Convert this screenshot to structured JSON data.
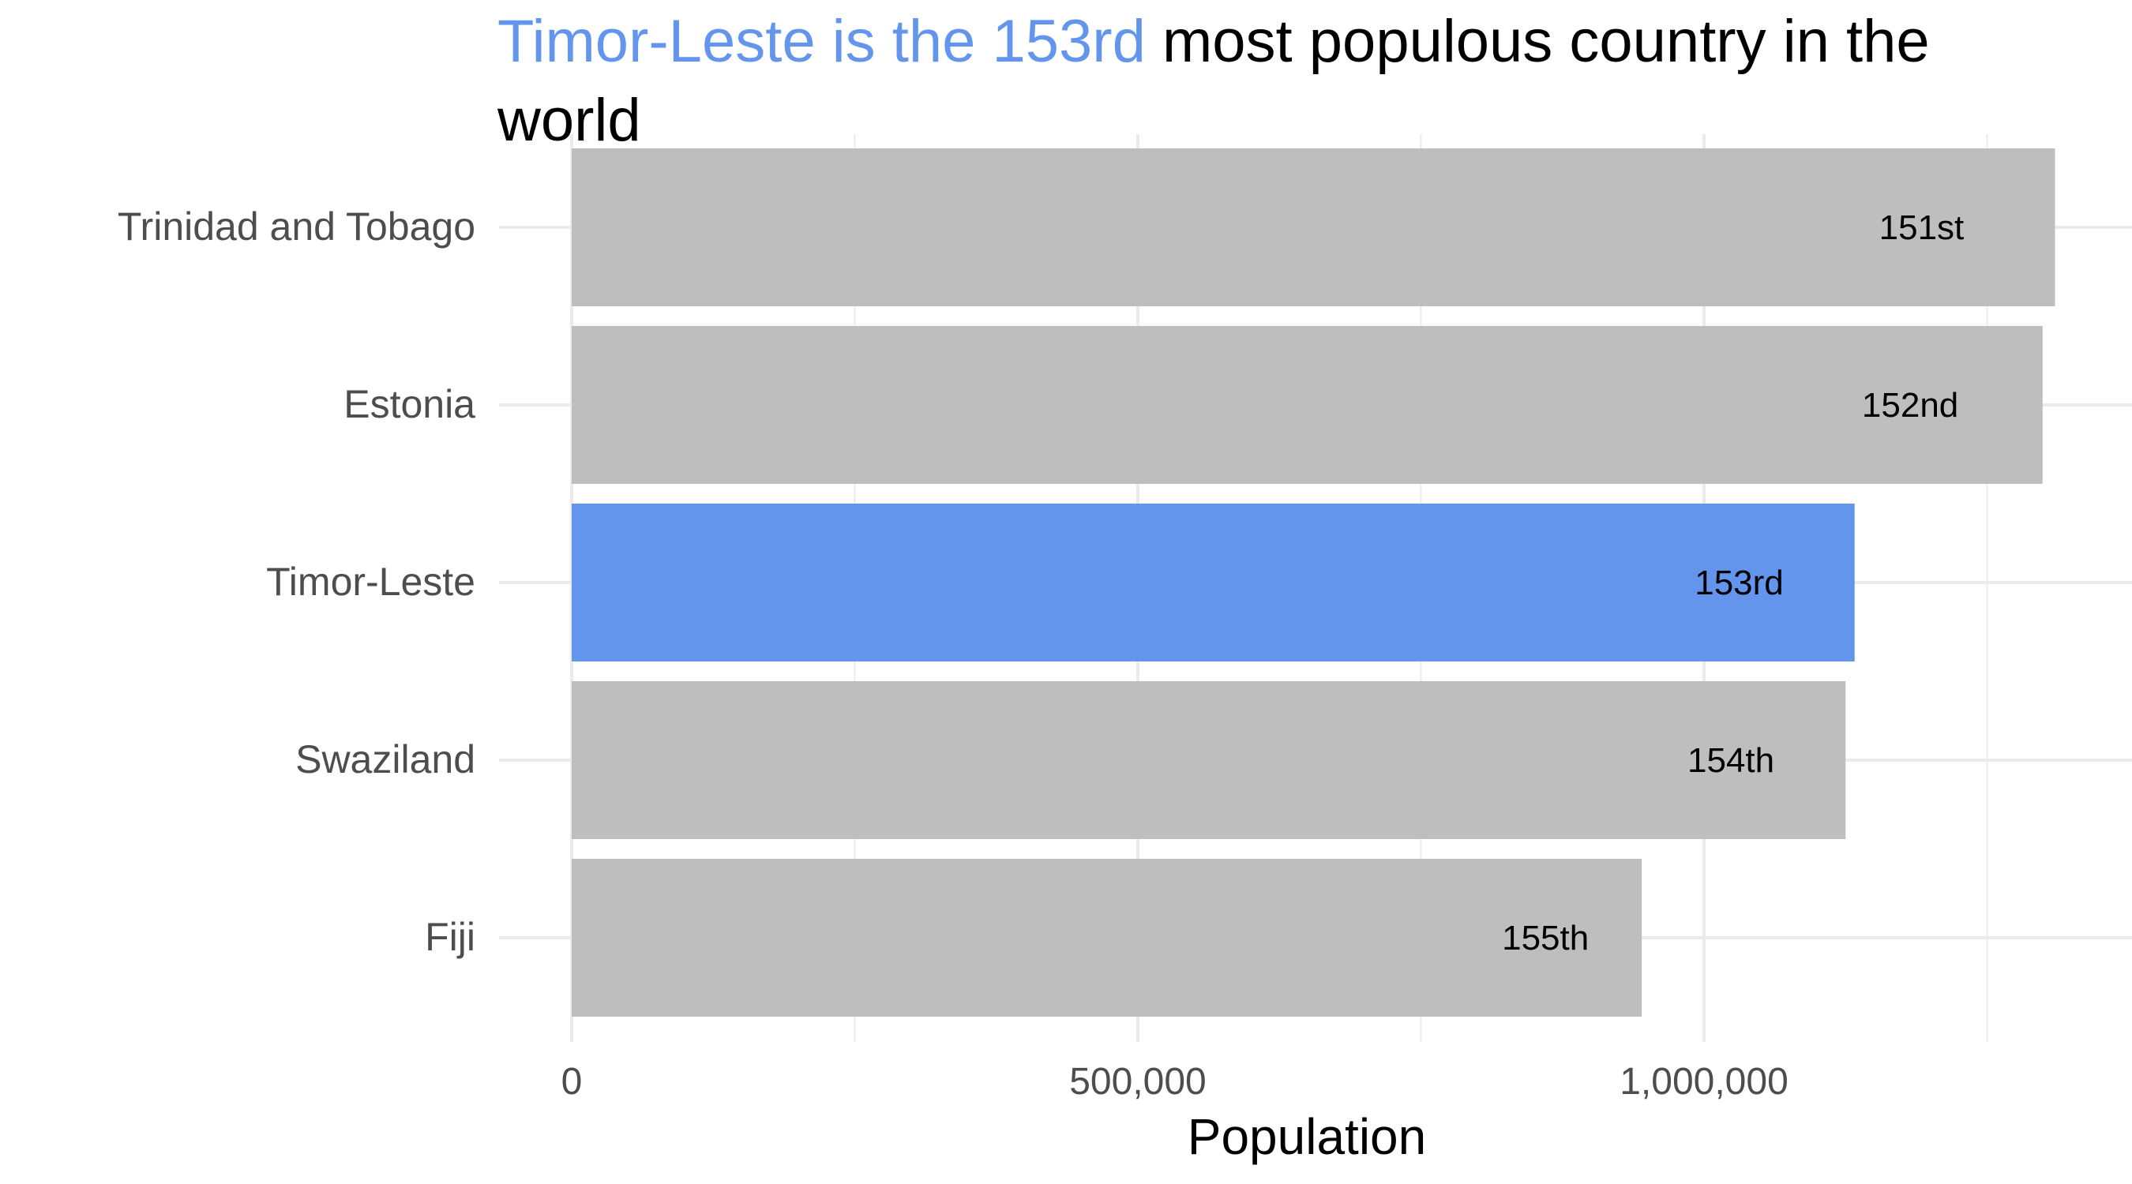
{
  "chart_data": {
    "type": "bar",
    "orientation": "horizontal",
    "title": {
      "highlight": "Timor-Leste is the 153rd",
      "rest": " most populous country in the",
      "line2": "world"
    },
    "xlabel": "Population",
    "ylabel": "",
    "xlim": [
      0,
      1320000
    ],
    "x_ticks": [
      0,
      500000,
      1000000
    ],
    "x_tick_labels": [
      "0",
      "500,000",
      "1,000,000"
    ],
    "grid": true,
    "legend": "none",
    "categories": [
      "Trinidad and Tobago",
      "Estonia",
      "Timor-Leste",
      "Swaziland",
      "Fiji"
    ],
    "values": [
      1310000,
      1299000,
      1133000,
      1125000,
      945000
    ],
    "labels": [
      "151st",
      "152nd",
      "153rd",
      "154th",
      "155th"
    ],
    "highlight_index": 2
  },
  "colors": {
    "highlight": "#6495ED",
    "bar": "#BEBEBE",
    "grid": "#EBEBEB",
    "axis_text": "#4D4D4D",
    "text": "#000000"
  }
}
